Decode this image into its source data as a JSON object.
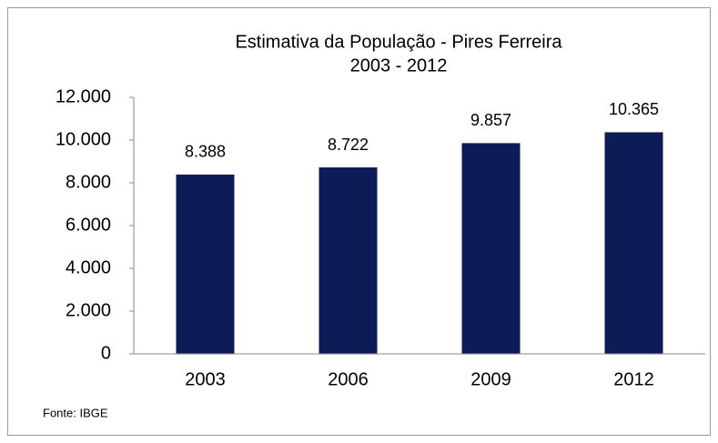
{
  "chart_data": {
    "type": "bar",
    "title": "Estimativa da População  - Pires Ferreira",
    "subtitle": "2003 - 2012",
    "categories": [
      "2003",
      "2006",
      "2009",
      "2012"
    ],
    "values": [
      8388,
      8722,
      9857,
      10365
    ],
    "value_labels": [
      "8.388",
      "8.722",
      "9.857",
      "10.365"
    ],
    "color": "#0d1c56",
    "ylim": [
      0,
      12000
    ],
    "yticks": [
      0,
      {
        "value": 2000,
        "label": "2.000"
      },
      {
        "value": 4000,
        "label": "4.000"
      },
      {
        "value": 6000,
        "label": "6.000"
      },
      {
        "value": 8000,
        "label": "8.000"
      },
      {
        "value": 10000,
        "label": "10.000"
      },
      {
        "value": 12000,
        "label": "12.000"
      }
    ],
    "grid": false,
    "source": "Fonte: IBGE"
  }
}
